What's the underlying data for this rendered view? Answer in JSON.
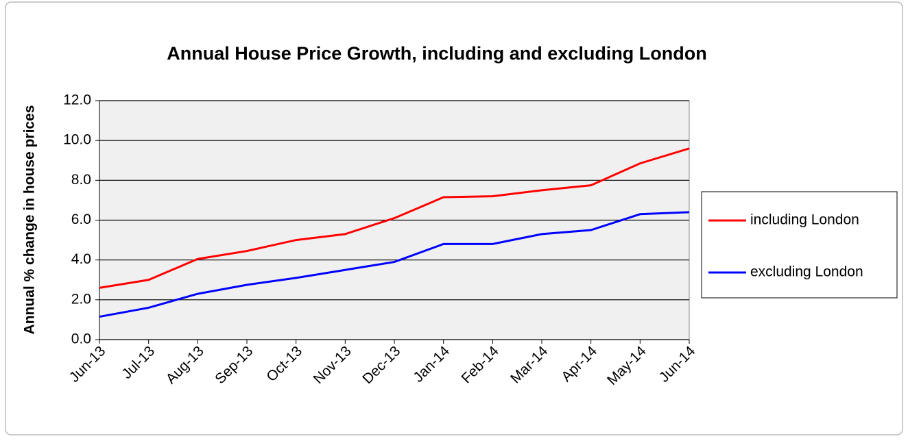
{
  "chart_data": {
    "type": "line",
    "title": "Annual House Price Growth, including and excluding London",
    "y_label": "Annual % change in house prices",
    "categories": [
      "Jun-13",
      "Jul-13",
      "Aug-13",
      "Sep-13",
      "Oct-13",
      "Nov-13",
      "Dec-13",
      "Jan-14",
      "Feb-14",
      "Mar-14",
      "Apr-14",
      "May-14",
      "Jun-14"
    ],
    "series": [
      {
        "name": "including London",
        "color": "#ff0000",
        "values": [
          2.6,
          3.0,
          4.05,
          4.45,
          5.0,
          5.3,
          6.1,
          7.15,
          7.2,
          7.5,
          7.75,
          8.85,
          9.6
        ]
      },
      {
        "name": "excluding London",
        "color": "#0000ff",
        "values": [
          1.15,
          1.6,
          2.3,
          2.75,
          3.1,
          3.5,
          3.9,
          4.8,
          4.8,
          5.3,
          5.5,
          6.3,
          6.4
        ]
      }
    ],
    "ylim": [
      0,
      12
    ],
    "yticks": [
      {
        "value": 0,
        "label": "0.0"
      },
      {
        "value": 2,
        "label": "2.0"
      },
      {
        "value": 4,
        "label": "4.0"
      },
      {
        "value": 6,
        "label": "6.0"
      },
      {
        "value": 8,
        "label": "8.0"
      },
      {
        "value": 10,
        "label": "10.0"
      },
      {
        "value": 12,
        "label": "12.0"
      }
    ],
    "grid": true,
    "legend": "right"
  }
}
